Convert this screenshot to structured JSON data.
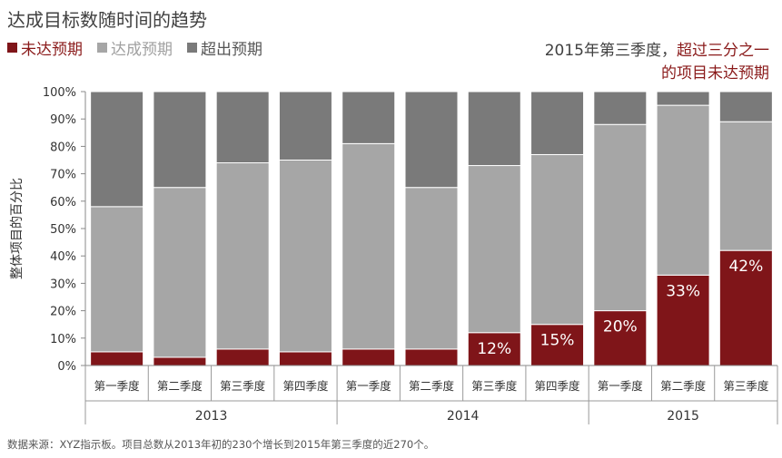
{
  "title": "达成目标数随时间的趋势",
  "legend": [
    {
      "label": "未达预期",
      "color": "#7f1519"
    },
    {
      "label": "达成预期",
      "color": "#a6a6a6"
    },
    {
      "label": "超出预期",
      "color": "#7a7a7a"
    }
  ],
  "callout": {
    "line1_prefix": "2015年第三季度，",
    "line1_highlight": "超过三分之一",
    "line2": "的项目未达预期"
  },
  "source": "数据来源：XYZ指示板。项目总数从2013年初的230个增长到2015年第三季度的近270个。",
  "chart_data": {
    "type": "bar",
    "stacked": true,
    "ylabel": "整体项目的百分比",
    "ylim": [
      0,
      100
    ],
    "yticks": [
      "0%",
      "10%",
      "20%",
      "30%",
      "40%",
      "50%",
      "60%",
      "70%",
      "80%",
      "90%",
      "100%"
    ],
    "categories": [
      "第一季度",
      "第二季度",
      "第三季度",
      "第四季度",
      "第一季度",
      "第二季度",
      "第三季度",
      "第四季度",
      "第一季度",
      "第二季度",
      "第三季度"
    ],
    "groups": [
      {
        "label": "2013",
        "count": 4
      },
      {
        "label": "2014",
        "count": 4
      },
      {
        "label": "2015",
        "count": 3
      }
    ],
    "series": [
      {
        "name": "未达预期",
        "color": "#7f1519",
        "values": [
          5,
          3,
          6,
          5,
          6,
          6,
          12,
          15,
          20,
          33,
          42
        ]
      },
      {
        "name": "达成预期",
        "color": "#a6a6a6",
        "values": [
          53,
          62,
          68,
          70,
          75,
          59,
          61,
          62,
          68,
          62,
          47
        ]
      },
      {
        "name": "超出预期",
        "color": "#7a7a7a",
        "values": [
          42,
          35,
          26,
          25,
          19,
          35,
          27,
          23,
          12,
          5,
          11
        ]
      }
    ],
    "data_labels": [
      "",
      "",
      "",
      "",
      "",
      "",
      "12%",
      "15%",
      "20%",
      "33%",
      "42%"
    ],
    "grid": false,
    "legend_position": "top-left"
  }
}
